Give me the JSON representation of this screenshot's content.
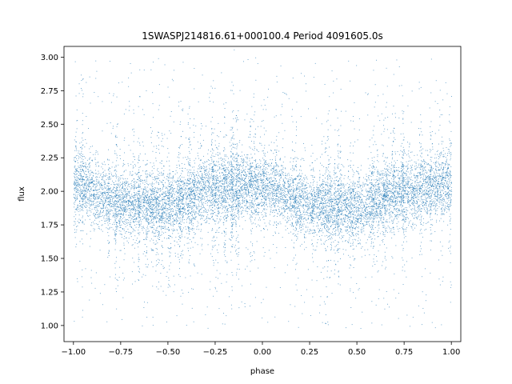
{
  "chart_data": {
    "type": "scatter",
    "title": "1SWASPJ214816.61+000100.4 Period 4091605.0s",
    "xlabel": "phase",
    "ylabel": "flux",
    "xlim": [
      -1.05,
      1.05
    ],
    "ylim": [
      0.88,
      3.08
    ],
    "x_ticks": [
      -1.0,
      -0.75,
      -0.5,
      -0.25,
      0.0,
      0.25,
      0.5,
      0.75,
      1.0
    ],
    "x_tick_labels": [
      "−1.00",
      "−0.75",
      "−0.50",
      "−0.25",
      "0.00",
      "0.25",
      "0.50",
      "0.75",
      "1.00"
    ],
    "y_ticks": [
      1.0,
      1.25,
      1.5,
      1.75,
      2.0,
      2.25,
      2.5,
      2.75,
      3.0
    ],
    "y_tick_labels": [
      "1.00",
      "1.25",
      "1.50",
      "1.75",
      "2.00",
      "2.25",
      "2.50",
      "2.75",
      "3.00"
    ],
    "grid": false,
    "legend": false,
    "marker_color": "#1f77b4",
    "series": [
      {
        "x_range": [
          -1.0,
          1.0
        ],
        "trend": {
          "phase": [
            -1.0,
            -0.75,
            -0.5,
            -0.25,
            0.0,
            0.25,
            0.5,
            0.75,
            1.0
          ],
          "flux_median": [
            2.05,
            1.92,
            1.9,
            2.02,
            2.05,
            1.9,
            1.88,
            2.0,
            2.05
          ]
        },
        "typical_scatter": 0.12,
        "outlier_range": [
          0.98,
          3.0
        ]
      }
    ]
  }
}
